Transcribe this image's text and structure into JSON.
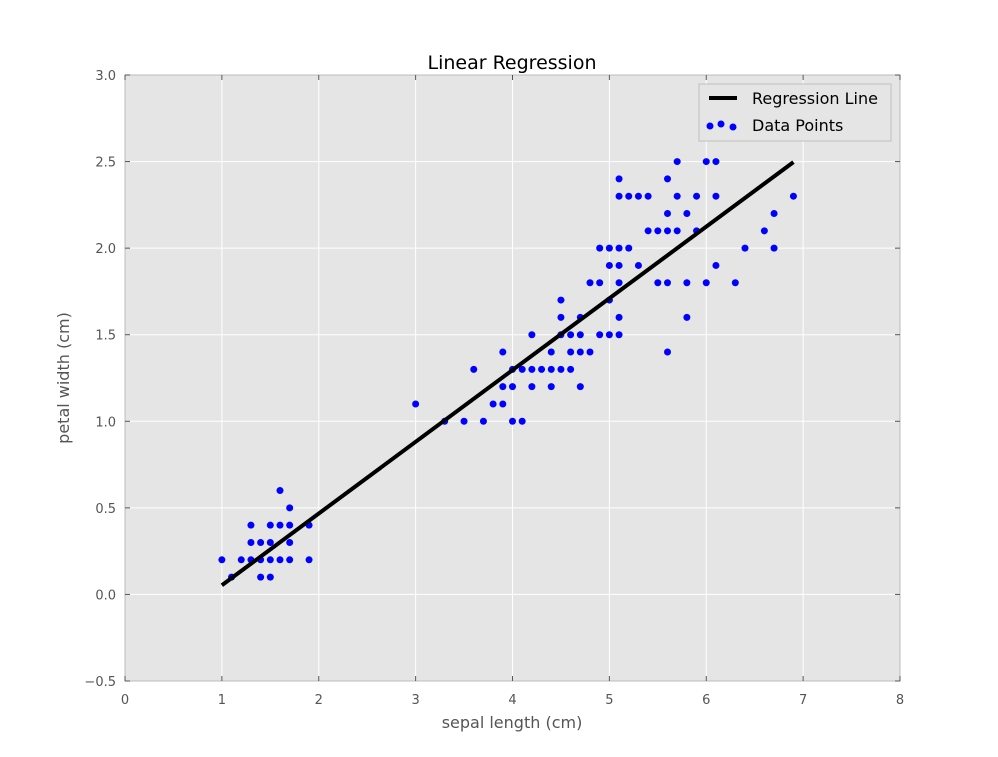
{
  "chart_data": {
    "type": "scatter",
    "title": "Linear Regression",
    "xlabel": "sepal length (cm)",
    "ylabel": "petal width (cm)",
    "xlim": [
      0,
      8
    ],
    "ylim": [
      -0.5,
      3.0
    ],
    "xticks": [
      "0",
      "1",
      "2",
      "3",
      "4",
      "5",
      "6",
      "7",
      "8"
    ],
    "yticks": [
      "−0.5",
      "0.0",
      "0.5",
      "1.0",
      "1.5",
      "2.0",
      "2.5",
      "3.0"
    ],
    "grid": true,
    "legend_position": "top-right",
    "colors": {
      "points": "#0000ff",
      "line": "#000000",
      "background": "#e5e5e5",
      "grid": "#ffffff"
    },
    "series": [
      {
        "name": "Regression Line",
        "kind": "line",
        "x": [
          1.0,
          6.9
        ],
        "y": [
          0.053,
          2.497
        ]
      },
      {
        "name": "Data Points",
        "kind": "scatter",
        "points": [
          [
            1.0,
            0.2
          ],
          [
            1.1,
            0.1
          ],
          [
            1.2,
            0.2
          ],
          [
            1.3,
            0.2
          ],
          [
            1.3,
            0.3
          ],
          [
            1.3,
            0.4
          ],
          [
            1.4,
            0.1
          ],
          [
            1.4,
            0.2
          ],
          [
            1.4,
            0.3
          ],
          [
            1.5,
            0.1
          ],
          [
            1.5,
            0.2
          ],
          [
            1.5,
            0.3
          ],
          [
            1.5,
            0.4
          ],
          [
            1.6,
            0.2
          ],
          [
            1.6,
            0.4
          ],
          [
            1.6,
            0.6
          ],
          [
            1.7,
            0.2
          ],
          [
            1.7,
            0.3
          ],
          [
            1.7,
            0.4
          ],
          [
            1.7,
            0.5
          ],
          [
            1.9,
            0.2
          ],
          [
            1.9,
            0.4
          ],
          [
            3.0,
            1.1
          ],
          [
            3.3,
            1.0
          ],
          [
            3.5,
            1.0
          ],
          [
            3.6,
            1.3
          ],
          [
            3.7,
            1.0
          ],
          [
            3.8,
            1.1
          ],
          [
            3.9,
            1.1
          ],
          [
            3.9,
            1.2
          ],
          [
            3.9,
            1.4
          ],
          [
            4.0,
            1.0
          ],
          [
            4.0,
            1.2
          ],
          [
            4.0,
            1.3
          ],
          [
            4.1,
            1.0
          ],
          [
            4.1,
            1.3
          ],
          [
            4.2,
            1.2
          ],
          [
            4.2,
            1.3
          ],
          [
            4.2,
            1.5
          ],
          [
            4.3,
            1.3
          ],
          [
            4.4,
            1.2
          ],
          [
            4.4,
            1.3
          ],
          [
            4.4,
            1.4
          ],
          [
            4.5,
            1.3
          ],
          [
            4.5,
            1.5
          ],
          [
            4.5,
            1.6
          ],
          [
            4.5,
            1.7
          ],
          [
            4.6,
            1.3
          ],
          [
            4.6,
            1.4
          ],
          [
            4.6,
            1.5
          ],
          [
            4.7,
            1.2
          ],
          [
            4.7,
            1.4
          ],
          [
            4.7,
            1.5
          ],
          [
            4.7,
            1.6
          ],
          [
            4.8,
            1.4
          ],
          [
            4.8,
            1.8
          ],
          [
            4.9,
            1.5
          ],
          [
            4.9,
            1.8
          ],
          [
            4.9,
            2.0
          ],
          [
            5.0,
            1.5
          ],
          [
            5.0,
            1.7
          ],
          [
            5.0,
            1.9
          ],
          [
            5.0,
            2.0
          ],
          [
            5.1,
            1.5
          ],
          [
            5.1,
            1.6
          ],
          [
            5.1,
            1.8
          ],
          [
            5.1,
            1.9
          ],
          [
            5.1,
            2.0
          ],
          [
            5.1,
            2.3
          ],
          [
            5.1,
            2.4
          ],
          [
            5.2,
            2.0
          ],
          [
            5.2,
            2.3
          ],
          [
            5.3,
            1.9
          ],
          [
            5.3,
            2.3
          ],
          [
            5.4,
            2.1
          ],
          [
            5.4,
            2.3
          ],
          [
            5.5,
            1.8
          ],
          [
            5.5,
            2.1
          ],
          [
            5.6,
            1.4
          ],
          [
            5.6,
            1.8
          ],
          [
            5.6,
            2.1
          ],
          [
            5.6,
            2.2
          ],
          [
            5.6,
            2.4
          ],
          [
            5.7,
            2.1
          ],
          [
            5.7,
            2.3
          ],
          [
            5.7,
            2.5
          ],
          [
            5.8,
            1.6
          ],
          [
            5.8,
            1.8
          ],
          [
            5.8,
            2.2
          ],
          [
            5.9,
            2.1
          ],
          [
            5.9,
            2.3
          ],
          [
            6.0,
            1.8
          ],
          [
            6.0,
            2.5
          ],
          [
            6.1,
            1.9
          ],
          [
            6.1,
            2.3
          ],
          [
            6.1,
            2.5
          ],
          [
            6.3,
            1.8
          ],
          [
            6.4,
            2.0
          ],
          [
            6.6,
            2.1
          ],
          [
            6.7,
            2.0
          ],
          [
            6.7,
            2.2
          ],
          [
            6.9,
            2.3
          ]
        ]
      }
    ]
  }
}
